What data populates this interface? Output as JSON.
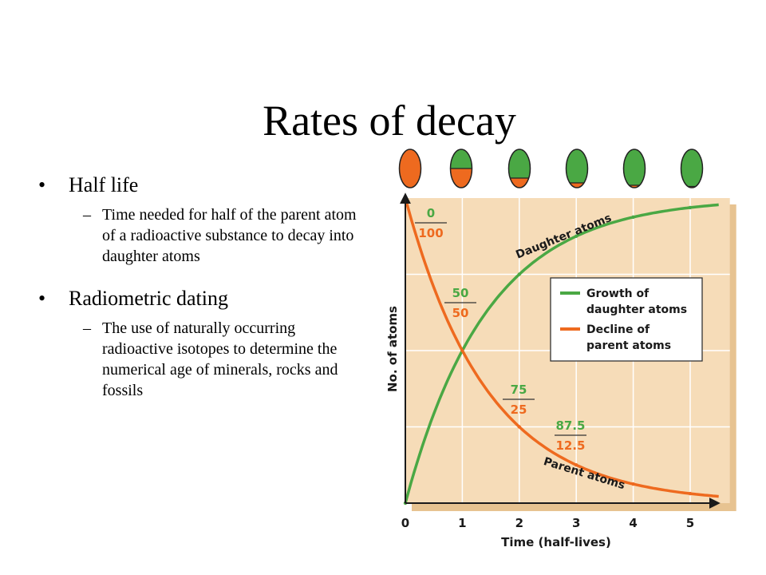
{
  "slide": {
    "title": "Rates of decay",
    "bullets": [
      {
        "label": "Half life",
        "sub": "Time needed for half of the parent atom of a radioactive substance to decay into daughter atoms"
      },
      {
        "label": "Radiometric dating",
        "sub": "The use of naturally occurring radioactive isotopes to determine the numerical age of minerals, rocks and fossils"
      }
    ],
    "dash": "–"
  },
  "colors": {
    "daughter": "#4aa844",
    "parent": "#ee6a1f",
    "plot_bg": "#f6dcb8",
    "grid": "#ffffff"
  },
  "chart_data": {
    "type": "line",
    "xlabel": "Time (half-lives)",
    "ylabel": "No. of atoms",
    "xlim": [
      0,
      5.5
    ],
    "ylim": [
      0,
      100
    ],
    "xticks": [
      "0",
      "1",
      "2",
      "3",
      "4",
      "5"
    ],
    "series": [
      {
        "name": "Growth of daughter atoms",
        "key": "daughter",
        "curve_label": "Daughter atoms",
        "x": [
          0,
          1,
          2,
          3,
          4,
          5,
          5.5
        ],
        "values": [
          0,
          50,
          75,
          87.5,
          93.75,
          96.875,
          97.8
        ]
      },
      {
        "name": "Decline of parent atoms",
        "key": "parent",
        "curve_label": "Parent atoms",
        "x": [
          0,
          1,
          2,
          3,
          4,
          5,
          5.5
        ],
        "values": [
          100,
          50,
          25,
          12.5,
          6.25,
          3.125,
          2.2
        ]
      }
    ],
    "legend": [
      "Growth of daughter atoms",
      "Decline of parent atoms"
    ],
    "legend_lines": [
      [
        "Growth of",
        "daughter atoms"
      ],
      [
        "Decline of",
        "parent atoms"
      ]
    ],
    "annotations": [
      {
        "x": 0,
        "daughter": "0",
        "parent": "100"
      },
      {
        "x": 1,
        "daughter": "50",
        "parent": "50"
      },
      {
        "x": 2,
        "daughter": "75",
        "parent": "25"
      },
      {
        "x": 3,
        "daughter": "87.5",
        "parent": "12.5"
      }
    ],
    "atom_icons": [
      {
        "half_lives": 0,
        "parent_fraction": 1.0
      },
      {
        "half_lives": 1,
        "parent_fraction": 0.5
      },
      {
        "half_lives": 2,
        "parent_fraction": 0.25
      },
      {
        "half_lives": 3,
        "parent_fraction": 0.125
      },
      {
        "half_lives": 4,
        "parent_fraction": 0.0625
      },
      {
        "half_lives": 5,
        "parent_fraction": 0.03125
      }
    ]
  }
}
